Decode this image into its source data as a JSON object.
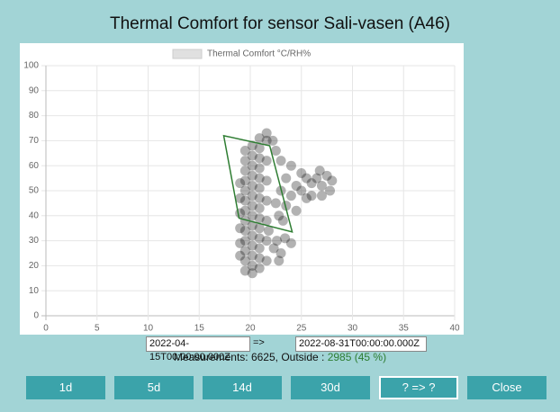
{
  "title": "Thermal Comfort for sensor Sali-vasen (A46)",
  "chart_data": {
    "type": "scatter",
    "series": [
      {
        "name": "Thermal Comfort °C/RH%",
        "color": "#000000",
        "x": [
          19.5,
          19.5,
          19.5,
          19.5,
          19.5,
          19.5,
          19.5,
          19.5,
          19.5,
          19.5,
          19.5,
          19.5,
          19.5,
          20.2,
          20.2,
          20.2,
          20.2,
          20.2,
          20.2,
          20.2,
          20.2,
          20.2,
          20.2,
          20.2,
          20.2,
          20.2,
          20.2,
          20.9,
          20.9,
          20.9,
          20.9,
          20.9,
          20.9,
          20.9,
          20.9,
          20.9,
          20.9,
          20.9,
          20.9,
          20.9,
          20.9,
          19.0,
          19.0,
          19.0,
          19.0,
          19.0,
          19.0,
          21.6,
          21.6,
          21.6,
          21.6,
          21.6,
          21.6,
          21.6,
          21.6,
          22.3,
          23.0,
          22.6,
          23.4,
          24.0,
          21.8,
          22.8,
          22.5,
          23.0,
          23.5,
          24.0,
          24.5,
          25.0,
          25.5,
          26.0,
          26.5,
          27.0,
          27.5,
          28.0,
          26.0,
          27.0,
          25.0,
          24.0,
          23.0,
          22.5,
          22.2,
          23.5,
          24.5,
          22.8,
          23.2,
          25.5,
          27.8,
          26.8
        ],
        "values": [
          18,
          22,
          26,
          30,
          34,
          38,
          42,
          46,
          50,
          54,
          58,
          62,
          66,
          17,
          20,
          24,
          28,
          32,
          36,
          40,
          44,
          48,
          52,
          56,
          60,
          64,
          68,
          19,
          23,
          27,
          31,
          35,
          39,
          43,
          47,
          51,
          55,
          59,
          63,
          67,
          71,
          24,
          29,
          35,
          41,
          47,
          53,
          22,
          30,
          38,
          46,
          54,
          62,
          70,
          73,
          27,
          25,
          30,
          31,
          29,
          34,
          22,
          45,
          50,
          55,
          48,
          52,
          50,
          47,
          53,
          55,
          52,
          56,
          54,
          48,
          48,
          57,
          60,
          62,
          66,
          70,
          44,
          42,
          40,
          38,
          55,
          50,
          58
        ]
      }
    ],
    "comfort_zone": {
      "color": "#2e7d32",
      "x": [
        17.4,
        21.9,
        24.1,
        18.9
      ],
      "y": [
        72,
        68,
        33.5,
        39
      ]
    },
    "xlim": [
      0,
      40
    ],
    "ylim": [
      0,
      100
    ],
    "xticks": [
      0,
      5,
      10,
      15,
      20,
      25,
      30,
      35,
      40
    ],
    "yticks": [
      0,
      10,
      20,
      30,
      40,
      50,
      60,
      70,
      80,
      90,
      100
    ],
    "grid": true
  },
  "controls": {
    "from": "2022-04-15T00:00:00.000Z",
    "arrow": "=>",
    "to": "2022-08-31T00:00:00.000Z",
    "measurements_label": "Measurements: 6625, Outside : ",
    "outside": "2985 (45 %)",
    "buttons": [
      "1d",
      "5d",
      "14d",
      "30d",
      "? => ?",
      "Close"
    ]
  }
}
